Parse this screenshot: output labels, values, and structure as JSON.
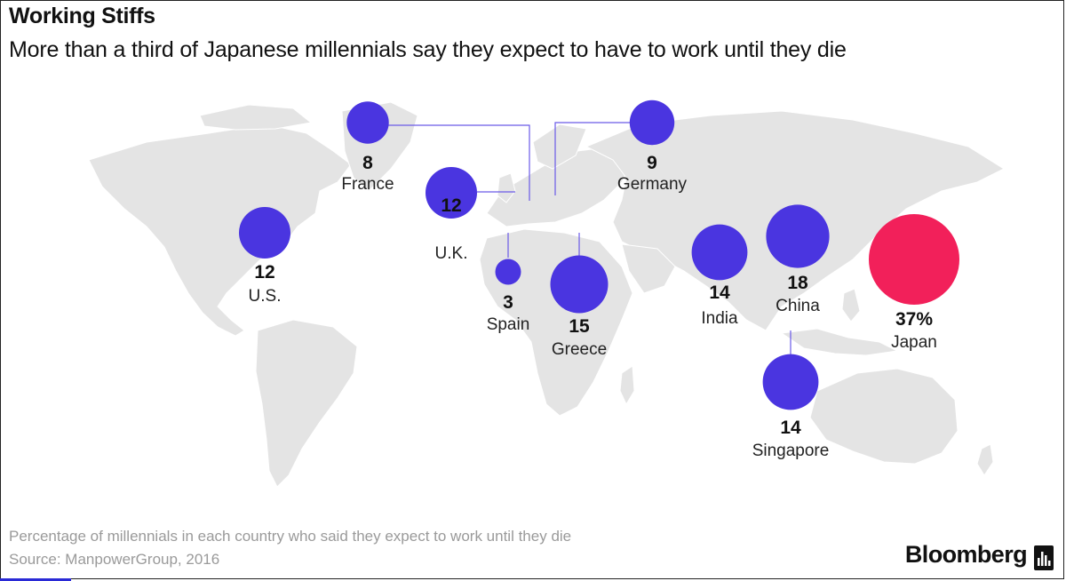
{
  "header": {
    "title": "Working Stiffs",
    "subtitle": "More than a third of Japanese millennials say they expect to have to work until they die"
  },
  "footer": {
    "note": "Percentage of millennials in each country who said they expect to work until they die",
    "source": "Source: ManpowerGroup, 2016",
    "brand": "Bloomberg"
  },
  "colors": {
    "bubble": "#4a35e0",
    "highlight": "#f2205a",
    "land": "#e4e4e4",
    "leader": "#6a5ae8"
  },
  "chart_data": {
    "type": "bubble-map",
    "unit": "%",
    "series": [
      {
        "country": "France",
        "value": 8,
        "label": "8"
      },
      {
        "country": "Germany",
        "value": 9,
        "label": "9"
      },
      {
        "country": "U.K.",
        "value": 12,
        "label": "12"
      },
      {
        "country": "U.S.",
        "value": 12,
        "label": "12"
      },
      {
        "country": "Spain",
        "value": 3,
        "label": "3"
      },
      {
        "country": "Greece",
        "value": 15,
        "label": "15"
      },
      {
        "country": "India",
        "value": 14,
        "label": "14"
      },
      {
        "country": "China",
        "value": 18,
        "label": "18"
      },
      {
        "country": "Japan",
        "value": 37,
        "label": "37%"
      },
      {
        "country": "Singapore",
        "value": 14,
        "label": "14"
      }
    ]
  }
}
